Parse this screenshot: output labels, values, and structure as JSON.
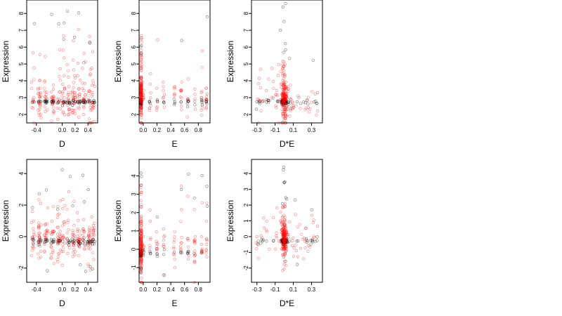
{
  "chart_data": [
    {
      "type": "scatter",
      "xlabel": "D",
      "ylabel": "Expression",
      "xlim": [
        -0.55,
        0.55
      ],
      "ylim": [
        1.5,
        8.8
      ],
      "xticks": [
        -0.4,
        0.0,
        0.2,
        0.4
      ],
      "yticks": [
        2,
        3,
        4,
        5,
        6,
        7,
        8
      ],
      "series": [
        {
          "color": "#000000",
          "gen": "d",
          "center": 2.75,
          "spread": 0.08,
          "n": 110,
          "outlier_low": 2.2,
          "outlier_high": 8.5
        },
        {
          "color": "#ff0000",
          "gen": "d",
          "center": 3.0,
          "spread": 0.9,
          "n": 220,
          "outlier_low": 1.9,
          "outlier_high": 7.1
        }
      ]
    },
    {
      "type": "scatter",
      "xlabel": "E",
      "ylabel": "Expression",
      "xlim": [
        -0.06,
        0.97
      ],
      "ylim": [
        1.5,
        8.8
      ],
      "xticks": [
        0.0,
        0.2,
        0.4,
        0.6,
        0.8
      ],
      "yticks": [
        2,
        3,
        4,
        5,
        6,
        7,
        8
      ],
      "series": [
        {
          "color": "#000000",
          "gen": "e",
          "center": 2.75,
          "spread": 0.1,
          "n": 110,
          "outlier_low": 2.3,
          "outlier_high": 8.6
        },
        {
          "color": "#ff0000",
          "gen": "e",
          "center": 3.2,
          "spread": 0.8,
          "n": 220,
          "outlier_low": 1.9,
          "outlier_high": 6.8
        }
      ]
    },
    {
      "type": "scatter",
      "xlabel": "D*E",
      "ylabel": "Expression",
      "xlim": [
        -0.36,
        0.42
      ],
      "ylim": [
        1.5,
        8.8
      ],
      "xticks": [
        -0.3,
        -0.1,
        0.1,
        0.3
      ],
      "yticks": [
        2,
        3,
        4,
        5,
        6,
        7,
        8
      ],
      "series": [
        {
          "color": "#000000",
          "gen": "de",
          "center": 2.75,
          "spread": 0.1,
          "n": 110,
          "outlier_low": 2.3,
          "outlier_high": 8.6
        },
        {
          "color": "#ff0000",
          "gen": "de",
          "center": 3.0,
          "spread": 0.8,
          "n": 220,
          "outlier_low": 1.8,
          "outlier_high": 5.0
        }
      ]
    },
    {
      "type": "scatter",
      "xlabel": "D",
      "ylabel": "Expression",
      "xlim": [
        -0.55,
        0.55
      ],
      "ylim": [
        -2.9,
        4.9
      ],
      "xticks": [
        -0.4,
        0.0,
        0.2,
        0.4
      ],
      "yticks": [
        -2,
        0,
        2,
        4
      ],
      "series": [
        {
          "color": "#000000",
          "gen": "d",
          "center": -0.3,
          "spread": 0.12,
          "n": 110,
          "outlier_low": -2.6,
          "outlier_high": 4.6
        },
        {
          "color": "#ff0000",
          "gen": "d",
          "center": 0.0,
          "spread": 0.8,
          "n": 220,
          "outlier_low": -1.5,
          "outlier_high": 3.2
        }
      ]
    },
    {
      "type": "scatter",
      "xlabel": "E",
      "ylabel": "Expression",
      "xlim": [
        -0.06,
        0.97
      ],
      "ylim": [
        -1.8,
        4.9
      ],
      "xticks": [
        0.0,
        0.2,
        0.4,
        0.6,
        0.8
      ],
      "yticks": [
        -1,
        0,
        1,
        2,
        3,
        4
      ],
      "series": [
        {
          "color": "#000000",
          "gen": "e",
          "center": -0.2,
          "spread": 0.12,
          "n": 110,
          "outlier_low": -1.5,
          "outlier_high": 4.5
        },
        {
          "color": "#ff0000",
          "gen": "e",
          "center": 0.2,
          "spread": 0.8,
          "n": 220,
          "outlier_low": -0.9,
          "outlier_high": 3.5
        }
      ]
    },
    {
      "type": "scatter",
      "xlabel": "D*E",
      "ylabel": "Expression",
      "xlim": [
        -0.36,
        0.42
      ],
      "ylim": [
        -2.9,
        4.9
      ],
      "xticks": [
        -0.3,
        -0.1,
        0.1,
        0.3
      ],
      "yticks": [
        -2,
        -1,
        0,
        1,
        2,
        3,
        4
      ],
      "series": [
        {
          "color": "#000000",
          "gen": "de",
          "center": -0.3,
          "spread": 0.12,
          "n": 110,
          "outlier_low": -1.9,
          "outlier_high": 4.5
        },
        {
          "color": "#ff0000",
          "gen": "de",
          "center": 0.0,
          "spread": 0.8,
          "n": 220,
          "outlier_low": -2.2,
          "outlier_high": 2.1
        }
      ]
    }
  ]
}
